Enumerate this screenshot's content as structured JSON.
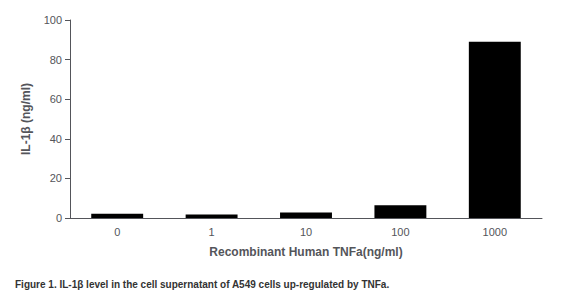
{
  "chart_data": {
    "type": "bar",
    "categories": [
      "0",
      "1",
      "10",
      "100",
      "1000"
    ],
    "values": [
      2.2,
      1.8,
      2.8,
      6.5,
      89.0
    ],
    "color": "#000000",
    "xlabel": "Recombinant Human TNFa(ng/ml)",
    "ylabel": "IL-1β (ng/ml)",
    "caption": "Figure 1. IL-1β level in the cell supernatant of A549 cells up-regulated by TNFa.",
    "ylim": [
      0,
      100
    ],
    "yticks": [
      0,
      20,
      40,
      60,
      80,
      100
    ],
    "grid": false
  }
}
